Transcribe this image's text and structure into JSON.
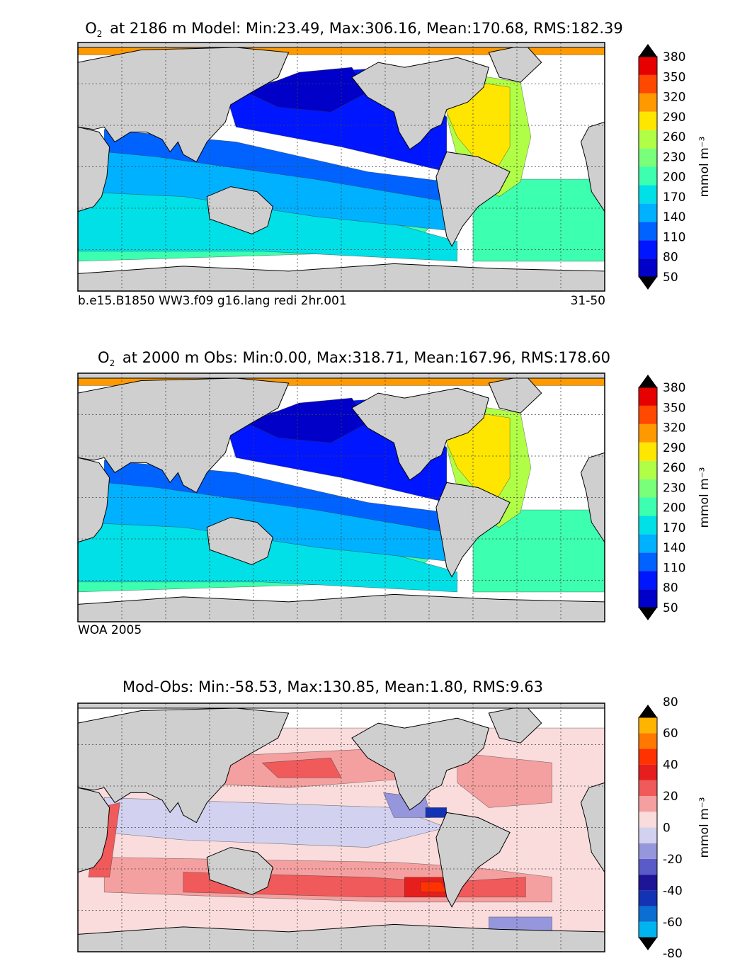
{
  "panels": [
    {
      "title_pre": "O",
      "title_sub": "2",
      "title_rest": "at 2186 m Model: Min:23.49, Max:306.16, Mean:170.68, RMS:182.39",
      "footer_left": "b.e15.B1850 WW3.f09 g16.lang redi 2hr.001",
      "footer_right": "31-50"
    },
    {
      "title_pre": "O",
      "title_sub": "2",
      "title_rest": "at 2000 m Obs: Min:0.00, Max:318.71, Mean:167.96, RMS:178.60",
      "footer_left": "WOA 2005",
      "footer_right": ""
    },
    {
      "title_pre": "",
      "title_sub": "",
      "title_rest": "Mod-Obs: Min:-58.53, Max:130.85, Mean:1.80, RMS:9.63",
      "footer_left": "",
      "footer_right": ""
    }
  ],
  "colorbar_units": "mmol m⁻³",
  "chart_data": [
    {
      "type": "heatmap",
      "title": "O2 at 2186 m Model: Min:23.49, Max:306.16, Mean:170.68, RMS:182.39",
      "variable": "O2",
      "depth_m": 2186,
      "source": "Model",
      "stats": {
        "min": 23.49,
        "max": 306.16,
        "mean": 170.68,
        "rms": 182.39
      },
      "colorbar": {
        "ticks": [
          50,
          80,
          110,
          140,
          170,
          200,
          230,
          260,
          290,
          320,
          350,
          380
        ],
        "levels": [
          20,
          50,
          80,
          110,
          140,
          170,
          200,
          230,
          260,
          290,
          320,
          350,
          380,
          410
        ],
        "colors": [
          "#00007f",
          "#0000c8",
          "#0016ff",
          "#0063ff",
          "#00b1ff",
          "#00e0e6",
          "#3cffb0",
          "#7aff7a",
          "#b0ff46",
          "#ffe600",
          "#ff9900",
          "#ff4800",
          "#e60000",
          "#7f0000"
        ],
        "extend": "both",
        "units": "mmol m⁻³"
      }
    },
    {
      "type": "heatmap",
      "title": "O2 at 2000 m Obs: Min:0.00, Max:318.71, Mean:167.96, RMS:178.60",
      "variable": "O2",
      "depth_m": 2000,
      "source": "WOA 2005",
      "stats": {
        "min": 0.0,
        "max": 318.71,
        "mean": 167.96,
        "rms": 178.6
      },
      "colorbar": {
        "ticks": [
          50,
          80,
          110,
          140,
          170,
          200,
          230,
          260,
          290,
          320,
          350,
          380
        ],
        "levels": [
          20,
          50,
          80,
          110,
          140,
          170,
          200,
          230,
          260,
          290,
          320,
          350,
          380,
          410
        ],
        "colors": [
          "#00007f",
          "#0000c8",
          "#0016ff",
          "#0063ff",
          "#00b1ff",
          "#00e0e6",
          "#3cffb0",
          "#7aff7a",
          "#b0ff46",
          "#ffe600",
          "#ff9900",
          "#ff4800",
          "#e60000",
          "#7f0000"
        ],
        "extend": "both",
        "units": "mmol m⁻³"
      }
    },
    {
      "type": "heatmap",
      "title": "Mod-Obs: Min:-58.53, Max:130.85, Mean:1.80, RMS:9.63",
      "variable": "O2 difference",
      "stats": {
        "min": -58.53,
        "max": 130.85,
        "mean": 1.8,
        "rms": 9.63
      },
      "colorbar": {
        "ticks": [
          80,
          60,
          40,
          20,
          0,
          -20,
          -40,
          -60,
          -80
        ],
        "levels": [
          -80,
          -70,
          -60,
          -50,
          -40,
          -30,
          -20,
          -10,
          0,
          10,
          20,
          30,
          40,
          50,
          60,
          70,
          80
        ],
        "colors": [
          "#14f0ff",
          "#00b4f0",
          "#0a6ed2",
          "#1432b4",
          "#1e1496",
          "#5a5ac8",
          "#9696dc",
          "#d2d2f0",
          "#fadcdc",
          "#f5a0a0",
          "#f05a5a",
          "#e61e1e",
          "#ff3200",
          "#ff7800",
          "#ffb400",
          "#ffff28"
        ],
        "extend": "both",
        "units": "mmol m⁻³"
      }
    }
  ]
}
